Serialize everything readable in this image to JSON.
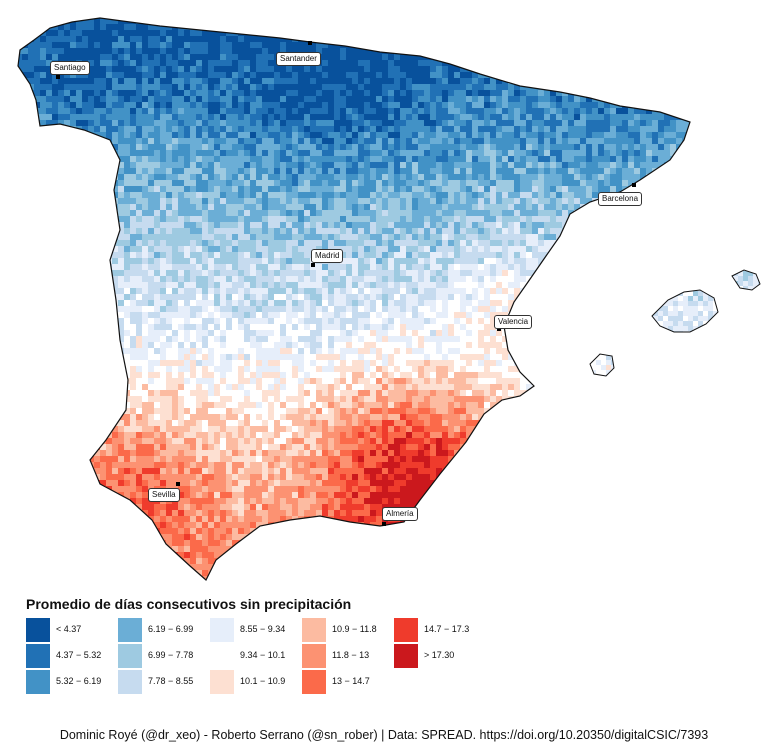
{
  "legend": {
    "title": "Promedio de días consecutivos sin precipitación",
    "classes": [
      {
        "label": "< 4.37",
        "color": "#08519c"
      },
      {
        "label": "4.37 − 5.32",
        "color": "#2171b5"
      },
      {
        "label": "5.32 − 6.19",
        "color": "#4292c6"
      },
      {
        "label": "6.19 − 6.99",
        "color": "#6baed6"
      },
      {
        "label": "6.99 − 7.78",
        "color": "#9ecae1"
      },
      {
        "label": "7.78 − 8.55",
        "color": "#c6dbef"
      },
      {
        "label": "8.55 − 9.34",
        "color": "#e6eefa"
      },
      {
        "label": "9.34 − 10.1",
        "color": "#ffffff"
      },
      {
        "label": "10.1 − 10.9",
        "color": "#fde0d2"
      },
      {
        "label": "10.9 − 11.8",
        "color": "#fcbba1"
      },
      {
        "label": "11.8 − 13",
        "color": "#fc9272"
      },
      {
        "label": "13 − 14.7",
        "color": "#fb6a4a"
      },
      {
        "label": "14.7 − 17.3",
        "color": "#ef3b2c"
      },
      {
        "label": "> 17.30",
        "color": "#cb181d"
      }
    ]
  },
  "cities": [
    {
      "name": "Santiago"
    },
    {
      "name": "Santander"
    },
    {
      "name": "Barcelona"
    },
    {
      "name": "Madrid"
    },
    {
      "name": "Valencia"
    },
    {
      "name": "Sevilla"
    },
    {
      "name": "Almería"
    }
  ],
  "caption": "Dominic Royé (@dr_xeo) - Roberto Serrano (@sn_rober) | Data: SPREAD. https://doi.org/10.20350/digitalCSIC/7393"
}
